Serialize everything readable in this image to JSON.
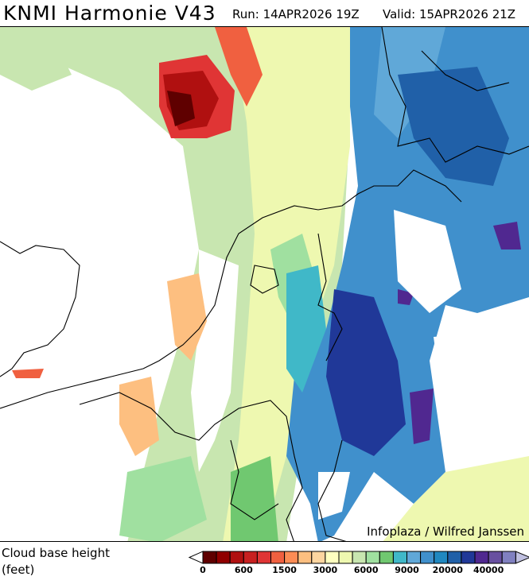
{
  "header": {
    "title": "KNMI Harmonie V43",
    "run": "Run: 14APR2026 19Z",
    "valid": "Valid: 15APR2026 21Z"
  },
  "map": {
    "credit": "Infoplaza / Wilfred Janssen"
  },
  "legend": {
    "label_line1": "Cloud base height",
    "label_line2": "(feet)",
    "colors": [
      "#5f0000",
      "#900000",
      "#b01010",
      "#c82020",
      "#e03535",
      "#f06040",
      "#fc8c55",
      "#fdbf80",
      "#fdd5a0",
      "#ffffc0",
      "#eef8b0",
      "#c8e6b0",
      "#a0e0a0",
      "#70c870",
      "#40b8c8",
      "#60a8d8",
      "#4090cc",
      "#2088c0",
      "#2060a8",
      "#203898",
      "#502890",
      "#6850a0",
      "#8080c0"
    ],
    "under_color": "#ffffff",
    "over_color": "#c0c0e0",
    "ticks": [
      "0",
      "600",
      "1500",
      "3000",
      "6000",
      "9000",
      "20000",
      "40000"
    ]
  }
}
